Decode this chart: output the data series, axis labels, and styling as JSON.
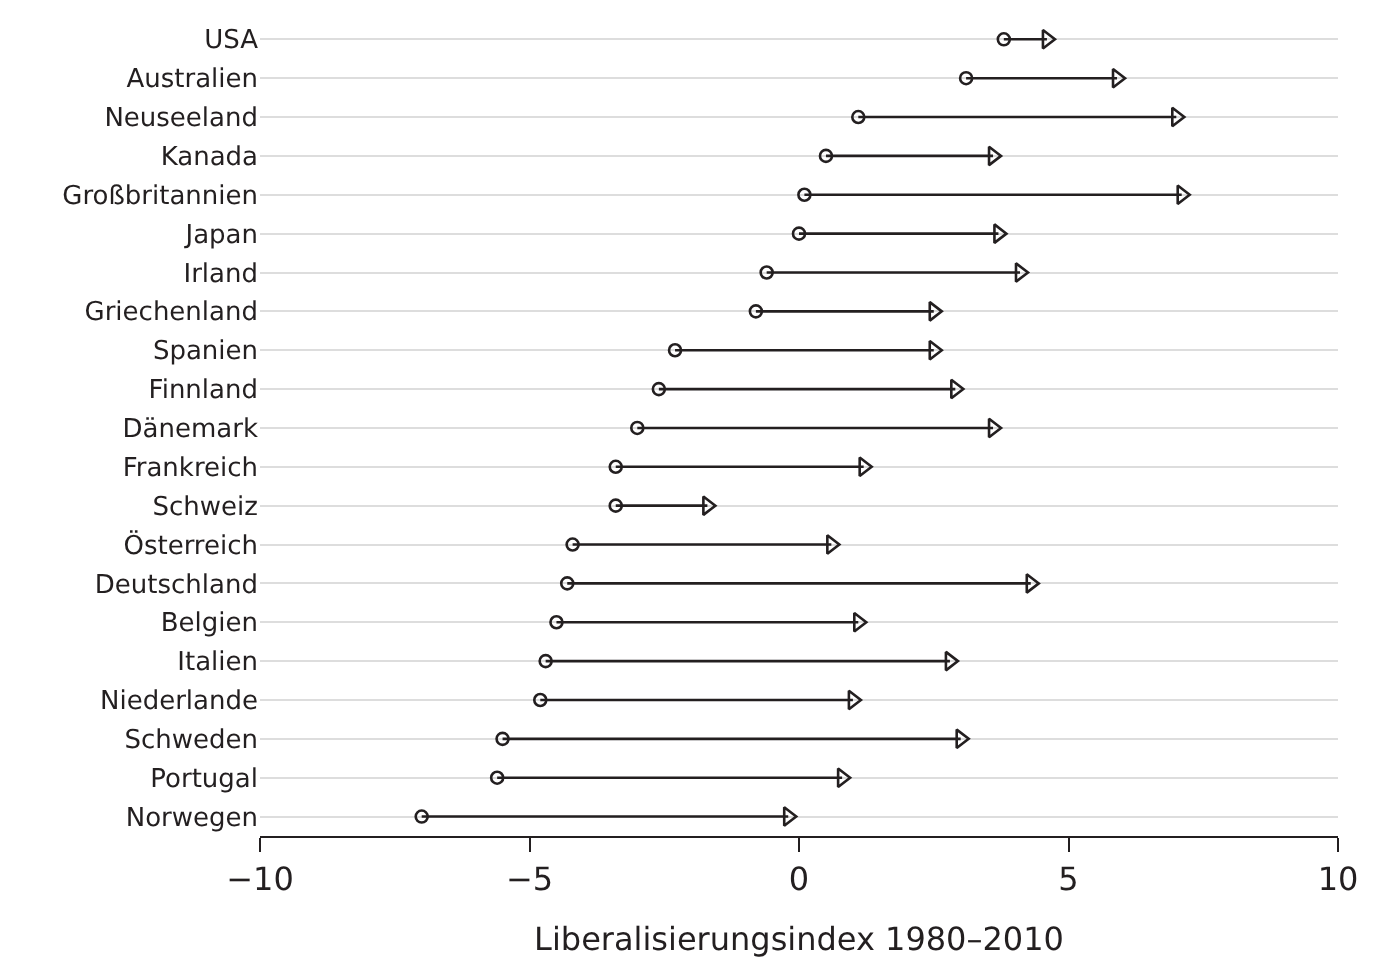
{
  "chart_data": {
    "type": "scatter",
    "orientation": "horizontal",
    "xlabel": "Liberalisierungsindex 1980–2010",
    "categories": [
      "USA",
      "Australien",
      "Neuseeland",
      "Kanada",
      "Großbritannien",
      "Japan",
      "Irland",
      "Griechenland",
      "Spanien",
      "Finnland",
      "Dänemark",
      "Frankreich",
      "Schweiz",
      "Österreich",
      "Deutschland",
      "Belgien",
      "Italien",
      "Niederlande",
      "Schweden",
      "Portugal",
      "Norwegen"
    ],
    "series": [
      {
        "color": "#231f20",
        "marker": "circle",
        "values": [
          3.8,
          3.1,
          1.1,
          0.5,
          0.1,
          0.0,
          -0.6,
          -0.8,
          -2.3,
          -2.6,
          -3.0,
          -3.4,
          -3.4,
          -4.2,
          -4.3,
          -4.5,
          -4.7,
          -4.8,
          -5.5,
          -5.6,
          -7.0
        ]
      },
      {
        "color": "#231f20",
        "marker": "triangle",
        "line_style": "solid",
        "values": [
          4.6,
          5.9,
          7.0,
          3.6,
          7.1,
          3.7,
          4.1,
          2.5,
          2.5,
          2.9,
          3.6,
          1.2,
          -1.7,
          0.6,
          4.3,
          1.1,
          2.8,
          1.0,
          3.0,
          0.8,
          -0.2
        ]
      }
    ],
    "xlim": [
      -10,
      10
    ],
    "xticks": [
      {
        "value": -10,
        "label": "−10"
      },
      {
        "value": -5,
        "label": "−5"
      },
      0,
      5,
      10
    ],
    "grid": "y"
  }
}
